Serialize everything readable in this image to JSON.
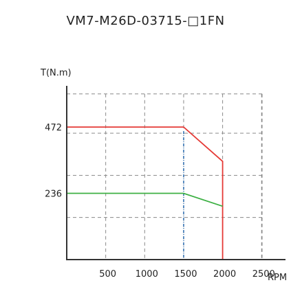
{
  "chart_data": {
    "type": "line",
    "title": "VM7-M26D-03715-□1FN",
    "ylabel": "T(N.m)",
    "xlabel": "RPM",
    "x_ticks": [
      500,
      1000,
      1500,
      2000,
      2500
    ],
    "y_ticks": [
      236,
      472
    ],
    "xlim": [
      0,
      3000
    ],
    "ylim": [
      0,
      620
    ],
    "grid": true,
    "grid_x": [
      500,
      1000,
      1500,
      2000,
      2500
    ],
    "grid_y": [
      150,
      300,
      450,
      590
    ],
    "rated_speed": 1500,
    "series": [
      {
        "role": "peak",
        "color": "#e53935",
        "points": [
          [
            0,
            472
          ],
          [
            1500,
            472
          ],
          [
            2000,
            350
          ],
          [
            2000,
            0
          ]
        ]
      },
      {
        "role": "rated",
        "color": "#3cb043",
        "points": [
          [
            0,
            236
          ],
          [
            1500,
            236
          ],
          [
            2000,
            190
          ]
        ]
      }
    ],
    "colors": {
      "axis": "#333333",
      "grid": "#888888",
      "rated_speed_line": "#2b6cb0"
    }
  }
}
